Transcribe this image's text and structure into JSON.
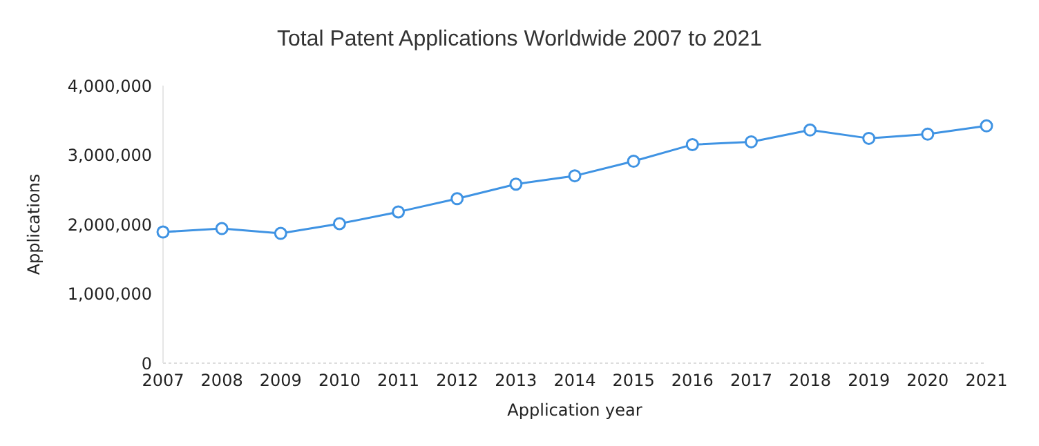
{
  "chart_data": {
    "type": "line",
    "title": "Total Patent Applications Worldwide 2007 to 2021",
    "xlabel": "Application year",
    "ylabel": "Applications",
    "categories": [
      "2007",
      "2008",
      "2009",
      "2010",
      "2011",
      "2012",
      "2013",
      "2014",
      "2015",
      "2016",
      "2017",
      "2018",
      "2019",
      "2020",
      "2021"
    ],
    "series": [
      {
        "color": "#3f93e3",
        "values": [
          1890000,
          1940000,
          1870000,
          2010000,
          2180000,
          2370000,
          2580000,
          2700000,
          2910000,
          3150000,
          3190000,
          3360000,
          3240000,
          3300000,
          3420000
        ]
      }
    ],
    "ylim": [
      0,
      4000000
    ],
    "yticks": [
      {
        "value": 0,
        "label": "0"
      },
      {
        "value": 1000000,
        "label": "1,000,000"
      },
      {
        "value": 2000000,
        "label": "2,000,000"
      },
      {
        "value": 3000000,
        "label": "3,000,000"
      },
      {
        "value": 4000000,
        "label": "4,000,000"
      }
    ],
    "grid": false,
    "marker": "circle",
    "line_style": "solid"
  }
}
